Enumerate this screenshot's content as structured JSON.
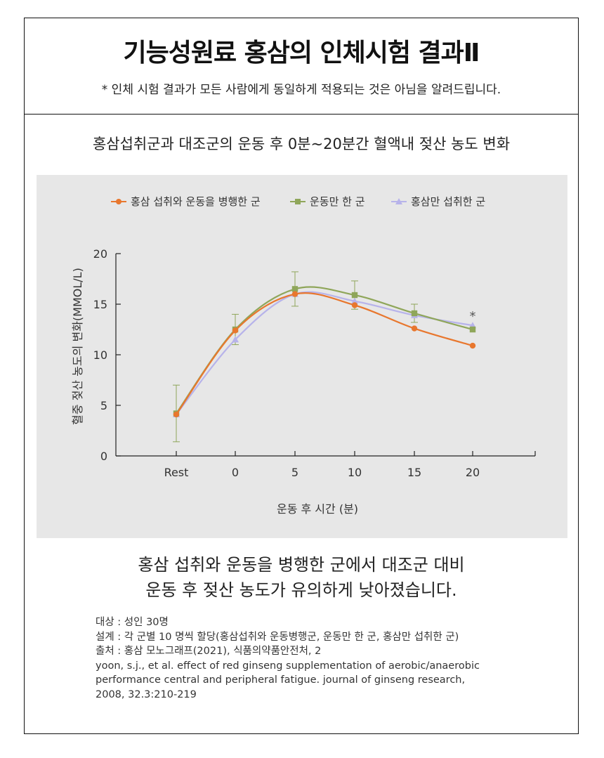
{
  "header": {
    "title": "기능성원료 홍삼의 인체시험 결과Ⅱ",
    "disclaimer": "* 인체 시험 결과가 모든 사람에게 동일하게 적용되는 것은 아님을 알려드립니다."
  },
  "chart_title": "홍삼섭취군과 대조군의 운동 후 0분~20분간 혈액내 젖산 농도 변화",
  "chart_data": {
    "type": "line",
    "categories": [
      "Rest",
      "0",
      "5",
      "10",
      "15",
      "20"
    ],
    "xlabel": "운동 후 시간 (분)",
    "ylabel": "혈중 젖산 농도의 변화(MMOL/L)",
    "ylim": [
      0,
      20
    ],
    "yticks": [
      "0",
      "5",
      "10",
      "15",
      "20"
    ],
    "grid": false,
    "legend_position": "top-center",
    "series": [
      {
        "name": "홍삼 섭취와 운동을 병행한 군",
        "color": "#e8772e",
        "marker": "circle",
        "values": [
          4.1,
          12.4,
          16.0,
          14.9,
          12.6,
          10.9
        ]
      },
      {
        "name": "운동만 한 군",
        "color": "#8fa65a",
        "marker": "square",
        "values": [
          4.2,
          12.5,
          16.5,
          15.9,
          14.1,
          12.5
        ],
        "errors": [
          2.8,
          1.5,
          1.7,
          1.4,
          0.9,
          0
        ]
      },
      {
        "name": "홍삼만 섭취한 군",
        "color": "#b7b3ea",
        "marker": "triangle",
        "values": [
          4.1,
          11.5,
          16.0,
          15.3,
          13.9,
          12.9
        ]
      }
    ],
    "annotations": [
      {
        "category": "20",
        "text": "*"
      }
    ]
  },
  "conclusion": {
    "line1": "홍삼 섭취와 운동을 병행한 군에서 대조군 대비",
    "line2": "운동 후 젖산 농도가 유의하게 낮아졌습니다."
  },
  "references": [
    "대상 : 성인 30명",
    "설계 : 각 군별 10 명씩 할당(홍삼섭취와 운동병행군, 운동만 한 군, 홍삼만 섭취한 군)",
    "출처 : 홍삼 모노그래프(2021), 식품의약품안전처, 2",
    "yoon, s.j., et al. effect of red ginseng supplementation of aerobic/anaerobic",
    "performance central and peripheral fatigue. journal of ginseng research,",
    "2008, 32.3:210-219"
  ]
}
